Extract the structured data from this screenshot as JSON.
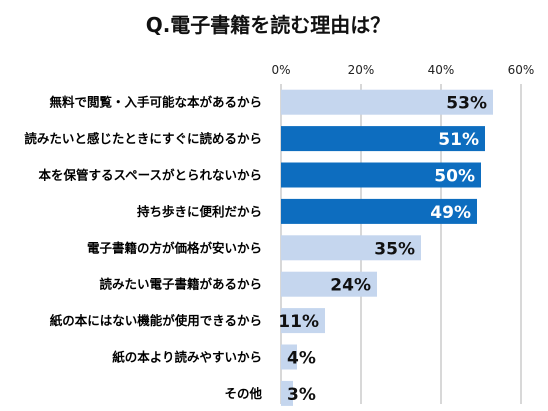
{
  "chart_data": {
    "type": "bar",
    "orientation": "horizontal",
    "title": "Q.電子書籍を読む理由は？",
    "xlim": [
      0,
      60
    ],
    "xticks": [
      "0%",
      "20%",
      "40%",
      "60%"
    ],
    "categories": [
      "無料で閲覧・入手可能な本があるから",
      "読みたいと感じたときにすぐに読めるから",
      "本を保管するスペースがとられないから",
      "持ち歩きに便利だから",
      "電子書籍の方が価格が安いから",
      "読みたい電子書籍があるから",
      "紙の本にはない機能が使用できるから",
      "紙の本より読みやすいから",
      "その他"
    ],
    "values": [
      53,
      51,
      50,
      49,
      35,
      24,
      11,
      4,
      3
    ],
    "value_labels": [
      "53%",
      "51%",
      "50%",
      "49%",
      "35%",
      "24%",
      "11%",
      "4%",
      "3%"
    ],
    "highlighted": [
      false,
      true,
      true,
      true,
      false,
      false,
      false,
      false,
      false
    ],
    "grid": true,
    "colors": {
      "light_bar": "#c5d6ee",
      "dark_bar": "#0d6dbf",
      "label_on_dark": "#ffffff",
      "label_on_light": "#111111",
      "grid": "#b0b0b0"
    }
  }
}
